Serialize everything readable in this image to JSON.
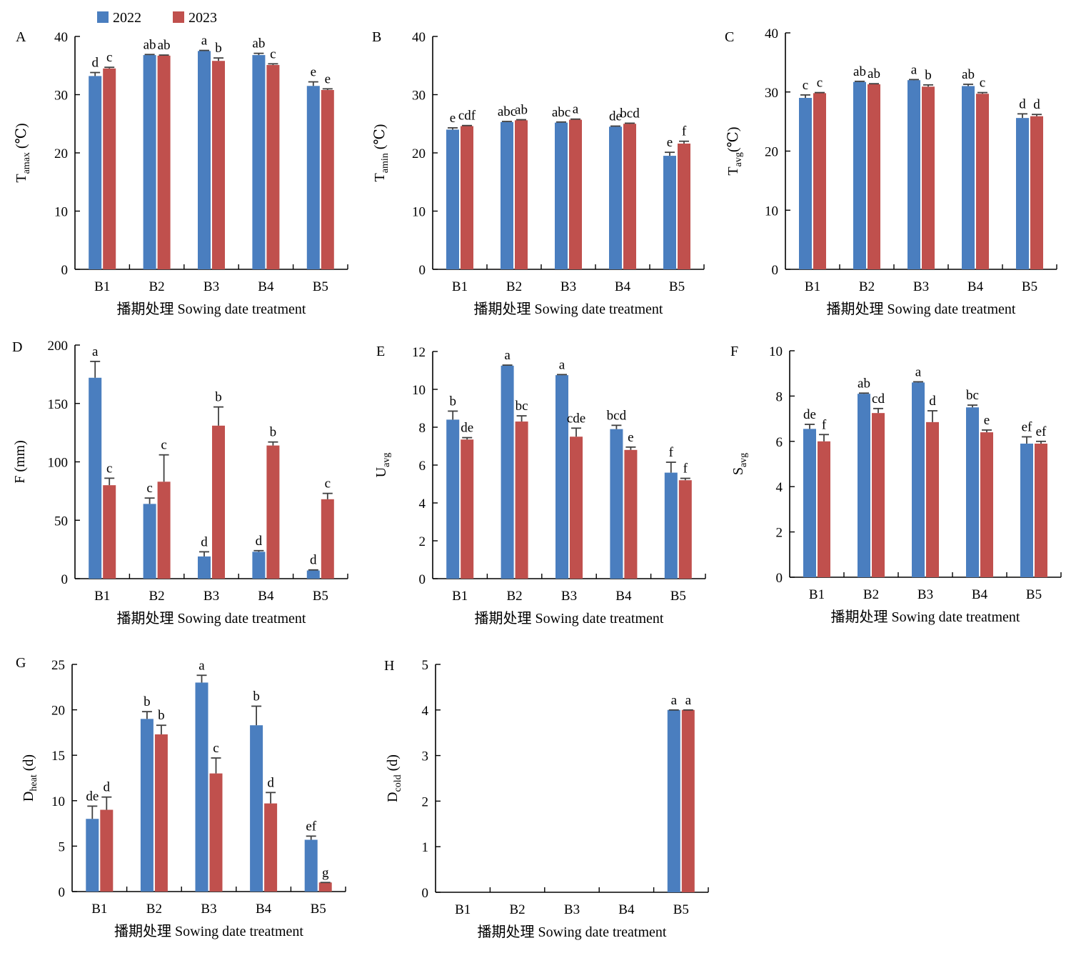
{
  "legend": {
    "series_2022": "2022",
    "series_2023": "2023"
  },
  "colors": {
    "s2022": "#4a7ebf",
    "s2023": "#c0504d",
    "error": "#404040",
    "axis": "#000000"
  },
  "chart_data": [
    {
      "panel": "A",
      "type": "bar",
      "ylabel": {
        "main": "T",
        "sub": "amax",
        "unit": " (℃)"
      },
      "xlabel": "播期处理 Sowing date treatment",
      "categories": [
        "B1",
        "B2",
        "B3",
        "B4",
        "B5"
      ],
      "ylim": [
        0,
        40
      ],
      "yticks": [
        0,
        10,
        20,
        30,
        40
      ],
      "series": [
        {
          "name": "2022",
          "values": [
            33.2,
            36.8,
            37.5,
            36.8,
            31.5
          ],
          "errors": [
            0.6,
            0.1,
            0.1,
            0.3,
            0.7
          ],
          "letters": [
            "d",
            "ab",
            "a",
            "ab",
            "e"
          ]
        },
        {
          "name": "2023",
          "values": [
            34.5,
            36.7,
            35.8,
            35.1,
            30.8
          ],
          "errors": [
            0.2,
            0.1,
            0.5,
            0.2,
            0.2
          ],
          "letters": [
            "c",
            "ab",
            "b",
            "c",
            "e"
          ]
        }
      ]
    },
    {
      "panel": "B",
      "type": "bar",
      "ylabel": {
        "main": "T",
        "sub": "amin",
        "unit": " (℃)"
      },
      "xlabel": "播期处理 Sowing date treatment",
      "categories": [
        "B1",
        "B2",
        "B3",
        "B4",
        "B5"
      ],
      "ylim": [
        0,
        40
      ],
      "yticks": [
        0,
        10,
        20,
        30,
        40
      ],
      "series": [
        {
          "name": "2022",
          "values": [
            24.0,
            25.3,
            25.2,
            24.5,
            19.5
          ],
          "errors": [
            0.3,
            0.1,
            0.1,
            0.1,
            0.6
          ],
          "letters": [
            "e",
            "abc",
            "abc",
            "de",
            "e"
          ]
        },
        {
          "name": "2023",
          "values": [
            24.6,
            25.6,
            25.7,
            25.0,
            21.6
          ],
          "errors": [
            0.1,
            0.1,
            0.1,
            0.1,
            0.4
          ],
          "letters": [
            "cdf",
            "ab",
            "a",
            "bcd",
            "f"
          ]
        }
      ]
    },
    {
      "panel": "C",
      "type": "bar",
      "ylabel": {
        "main": "T",
        "sub": "avg",
        "unit": "(℃)"
      },
      "xlabel": "播期处理 Sowing date treatment",
      "categories": [
        "B1",
        "B2",
        "B3",
        "B4",
        "B5"
      ],
      "ylim": [
        0,
        40
      ],
      "yticks": [
        0,
        10,
        20,
        30,
        40
      ],
      "series": [
        {
          "name": "2022",
          "values": [
            29.0,
            31.7,
            32.0,
            31.0,
            25.6
          ],
          "errors": [
            0.5,
            0.1,
            0.1,
            0.3,
            0.7
          ],
          "letters": [
            "c",
            "ab",
            "a",
            "ab",
            "d"
          ]
        },
        {
          "name": "2023",
          "values": [
            29.8,
            31.3,
            30.9,
            29.7,
            25.9
          ],
          "errors": [
            0.1,
            0.1,
            0.3,
            0.2,
            0.3
          ],
          "letters": [
            "c",
            "ab",
            "b",
            "c",
            "d"
          ]
        }
      ]
    },
    {
      "panel": "D",
      "type": "bar",
      "ylabel": {
        "main": "F (mm)",
        "sub": "",
        "unit": ""
      },
      "xlabel": "播期处理 Sowing date treatment",
      "categories": [
        "B1",
        "B2",
        "B3",
        "B4",
        "B5"
      ],
      "ylim": [
        0,
        200
      ],
      "yticks": [
        0,
        50,
        100,
        150,
        200
      ],
      "series": [
        {
          "name": "2022",
          "values": [
            172,
            64,
            19,
            23,
            7
          ],
          "errors": [
            14,
            5,
            4,
            1,
            0.5
          ],
          "letters": [
            "a",
            "c",
            "d",
            "d",
            "d"
          ]
        },
        {
          "name": "2023",
          "values": [
            80,
            83,
            131,
            114,
            68
          ],
          "errors": [
            6,
            23,
            16,
            3,
            5
          ],
          "letters": [
            "c",
            "c",
            "b",
            "b",
            "c"
          ]
        }
      ]
    },
    {
      "panel": "E",
      "type": "bar",
      "ylabel": {
        "main": "U",
        "sub": "avg",
        "unit": ""
      },
      "xlabel": "播期处理 Sowing date treatment",
      "categories": [
        "B1",
        "B2",
        "B3",
        "B4",
        "B5"
      ],
      "ylim": [
        0,
        12
      ],
      "yticks": [
        0,
        2,
        4,
        6,
        8,
        10,
        12
      ],
      "series": [
        {
          "name": "2022",
          "values": [
            8.4,
            11.25,
            10.75,
            7.9,
            5.6
          ],
          "errors": [
            0.45,
            0.03,
            0.03,
            0.2,
            0.55
          ],
          "letters": [
            "b",
            "a",
            "a",
            "bcd",
            "f"
          ]
        },
        {
          "name": "2023",
          "values": [
            7.35,
            8.3,
            7.5,
            6.8,
            5.2
          ],
          "errors": [
            0.1,
            0.3,
            0.45,
            0.15,
            0.1
          ],
          "letters": [
            "de",
            "bc",
            "cde",
            "e",
            "f"
          ]
        }
      ]
    },
    {
      "panel": "F",
      "type": "bar",
      "ylabel": {
        "main": "S",
        "sub": "avg",
        "unit": ""
      },
      "xlabel": "播期处理 Sowing date treatment",
      "categories": [
        "B1",
        "B2",
        "B3",
        "B4",
        "B5"
      ],
      "ylim": [
        0,
        10
      ],
      "yticks": [
        0,
        2,
        4,
        6,
        8,
        10
      ],
      "series": [
        {
          "name": "2022",
          "values": [
            6.55,
            8.1,
            8.6,
            7.5,
            5.9
          ],
          "errors": [
            0.2,
            0.03,
            0.03,
            0.1,
            0.3
          ],
          "letters": [
            "de",
            "ab",
            "a",
            "bc",
            "ef"
          ]
        },
        {
          "name": "2023",
          "values": [
            6.0,
            7.25,
            6.85,
            6.4,
            5.9
          ],
          "errors": [
            0.3,
            0.2,
            0.5,
            0.1,
            0.1
          ],
          "letters": [
            "f",
            "cd",
            "d",
            "e",
            "ef"
          ]
        }
      ]
    },
    {
      "panel": "G",
      "type": "bar",
      "ylabel": {
        "main": "D",
        "sub": "heat",
        "unit": " (d)"
      },
      "xlabel": "播期处理 Sowing date treatment",
      "categories": [
        "B1",
        "B2",
        "B3",
        "B4",
        "B5"
      ],
      "ylim": [
        0,
        25
      ],
      "yticks": [
        0,
        5,
        10,
        15,
        20,
        25
      ],
      "series": [
        {
          "name": "2022",
          "values": [
            8.0,
            19.0,
            23.0,
            18.3,
            5.7
          ],
          "errors": [
            1.4,
            0.8,
            0.8,
            2.1,
            0.4
          ],
          "letters": [
            "de",
            "b",
            "a",
            "b",
            "ef"
          ]
        },
        {
          "name": "2023",
          "values": [
            9.0,
            17.3,
            13.0,
            9.7,
            1.0
          ],
          "errors": [
            1.4,
            1.0,
            1.7,
            1.2,
            0
          ],
          "letters": [
            "d",
            "b",
            "c",
            "d",
            "g"
          ]
        }
      ]
    },
    {
      "panel": "H",
      "type": "bar",
      "ylabel": {
        "main": "D",
        "sub": "cold",
        "unit": " (d)"
      },
      "xlabel": "播期处理 Sowing date treatment",
      "categories": [
        "B1",
        "B2",
        "B3",
        "B4",
        "B5"
      ],
      "ylim": [
        0,
        5
      ],
      "yticks": [
        0,
        1,
        2,
        3,
        4,
        5
      ],
      "series": [
        {
          "name": "2022",
          "values": [
            0,
            0,
            0,
            0,
            4
          ],
          "errors": [
            0,
            0,
            0,
            0,
            0
          ],
          "letters": [
            "",
            "",
            "",
            "",
            "a"
          ]
        },
        {
          "name": "2023",
          "values": [
            0,
            0,
            0,
            0,
            4
          ],
          "errors": [
            0,
            0,
            0,
            0,
            0
          ],
          "letters": [
            "",
            "",
            "",
            "",
            "a"
          ]
        }
      ]
    }
  ]
}
